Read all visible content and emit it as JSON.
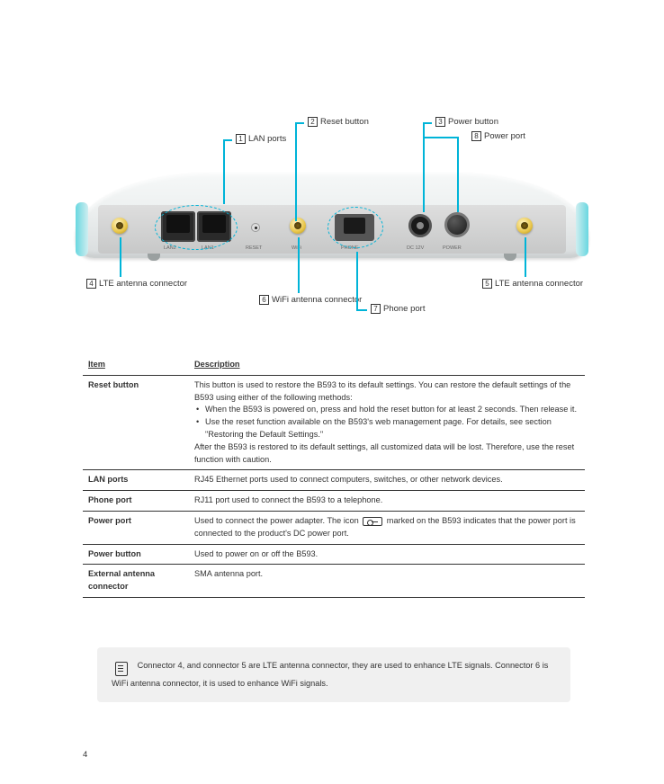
{
  "colors": {
    "callout_line": "#00b4d8",
    "text": "#333333",
    "note_bg": "#f0f0f0",
    "device_panel": "#c7c8c8",
    "device_body_top": "#f6f8f8",
    "device_body_bottom": "#d8dcdd",
    "gold_connector": "#e8c548",
    "teal_edge": "#69d7e0"
  },
  "device": {
    "port_labels": {
      "lan2": "LAN2",
      "lan1": "LAN1",
      "reset": "RESET",
      "wifi": "WiFi",
      "phone": "PHONE",
      "dc": "DC 12V",
      "power": "POWER"
    }
  },
  "callouts": {
    "c1": {
      "num": "1",
      "text": "LAN ports"
    },
    "c2": {
      "num": "2",
      "text": "Reset button"
    },
    "c3": {
      "num": "3",
      "text": "Power button"
    },
    "c4": {
      "num": "4",
      "text": "LTE antenna connector"
    },
    "c5": {
      "num": "5",
      "text": "LTE antenna connector"
    },
    "c6": {
      "num": "6",
      "text": "WiFi antenna connector"
    },
    "c7": {
      "num": "7",
      "text": "Phone port"
    },
    "c8": {
      "num": "8",
      "text": "Power port"
    }
  },
  "table": {
    "headers": {
      "item": "Item",
      "desc": "Description"
    },
    "rows": [
      {
        "item": "Reset button",
        "desc_intro": "This button is used to restore the B593 to its default settings. You can restore the default settings of the B593 using either of the following methods:",
        "bullets": [
          "When the B593 is powered on, press and hold the reset button for at least 2 seconds. Then release it.",
          "Use the reset function available on the B593's web management page. For details, see section \"Restoring the Default Settings.\""
        ],
        "desc_outro": "After the B593 is restored to its default settings, all customized data will be lost. Therefore, use the reset function with caution."
      },
      {
        "item": "LAN ports",
        "desc": "RJ45 Ethernet ports used to connect computers, switches, or other network devices."
      },
      {
        "item": "Phone port",
        "desc": "RJ11 port used to connect the B593 to a telephone."
      },
      {
        "item": "Power port",
        "desc_html": "Used to connect the power adapter. The icon <SYM> marked on the B593 indicates that the power port is connected to the product's DC power port."
      },
      {
        "item": "Power button",
        "desc": "Used to power on or off the B593."
      },
      {
        "item": "External antenna connector",
        "desc": "SMA antenna port."
      }
    ]
  },
  "note": {
    "text": "Connector 4, and connector 5 are LTE antenna connector, they are used to enhance LTE signals. Connector 6 is WiFi antenna connector, it is used to enhance WiFi signals."
  },
  "page_number": "4"
}
